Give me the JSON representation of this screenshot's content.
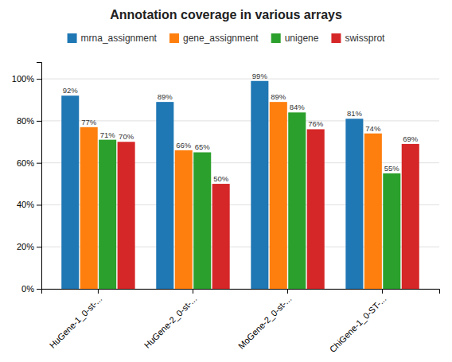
{
  "chart_data": {
    "type": "bar",
    "title": "Annotation coverage in various arrays",
    "categories": [
      "HuGene-1_0-st-...",
      "HuGene-2_0-st-...",
      "MoGene-2_0-st-...",
      "ChiGene-1_0-ST-..."
    ],
    "series": [
      {
        "name": "mrna_assignment",
        "values": [
          0.92,
          0.89,
          0.99,
          0.81
        ],
        "value_labels": [
          "92%",
          "89%",
          "99%",
          "81%"
        ]
      },
      {
        "name": "gene_assignment",
        "values": [
          0.77,
          0.66,
          0.89,
          0.74
        ],
        "value_labels": [
          "77%",
          "66%",
          "89%",
          "74%"
        ]
      },
      {
        "name": "unigene",
        "values": [
          0.71,
          0.65,
          0.84,
          0.55
        ],
        "value_labels": [
          "71%",
          "65%",
          "84%",
          "55%"
        ]
      },
      {
        "name": "swissprot",
        "values": [
          0.7,
          0.5,
          0.76,
          0.69
        ],
        "value_labels": [
          "70%",
          "50%",
          "76%",
          "69%"
        ]
      }
    ],
    "ylim": [
      0,
      1.08
    ],
    "yticks": [
      {
        "value": 0,
        "label": "0%"
      },
      {
        "value": 0.2,
        "label": "20%"
      },
      {
        "value": 0.4,
        "label": "40%"
      },
      {
        "value": 0.6,
        "label": "60%"
      },
      {
        "value": 0.8,
        "label": "80%"
      },
      {
        "value": 1.0,
        "label": "100%"
      }
    ],
    "grid": true,
    "legend": "top",
    "data_labels": true
  }
}
